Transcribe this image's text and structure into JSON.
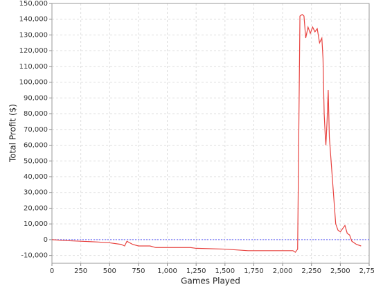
{
  "chart_data": {
    "type": "line",
    "x_label": "Games Played",
    "y_label": "Total Profit ($)",
    "x": [
      0,
      100,
      250,
      400,
      500,
      600,
      630,
      650,
      700,
      750,
      850,
      900,
      1000,
      1200,
      1250,
      1500,
      1700,
      2000,
      2090,
      2110,
      2130,
      2150,
      2170,
      2185,
      2200,
      2220,
      2240,
      2260,
      2280,
      2300,
      2320,
      2340,
      2350,
      2360,
      2370,
      2375,
      2385,
      2395,
      2405,
      2420,
      2430,
      2440,
      2450,
      2460,
      2480,
      2500,
      2520,
      2540,
      2560,
      2580,
      2600,
      2620,
      2640,
      2680
    ],
    "values": [
      0,
      -500,
      -1000,
      -1500,
      -2000,
      -3000,
      -4000,
      -1000,
      -3000,
      -4000,
      -4000,
      -5000,
      -5000,
      -5000,
      -5500,
      -6000,
      -7000,
      -7000,
      -7000,
      -8000,
      -6000,
      142000,
      143000,
      142000,
      128000,
      135000,
      131000,
      135000,
      132000,
      134000,
      125000,
      128000,
      115000,
      80000,
      65000,
      60000,
      75000,
      95000,
      65000,
      50000,
      40000,
      30000,
      20000,
      10000,
      6000,
      5000,
      7000,
      9000,
      4000,
      3000,
      -1000,
      -2000,
      -3000,
      -4000
    ],
    "color": "#e8423f",
    "xlim": [
      0,
      2750
    ],
    "xticks": [
      0,
      250,
      500,
      750,
      {
        "value": 1000,
        "label": "1,000"
      },
      {
        "value": 1250,
        "label": "1,250"
      },
      {
        "value": 1500,
        "label": "1,500"
      },
      {
        "value": 1750,
        "label": "1,750"
      },
      {
        "value": 2000,
        "label": "2,000"
      },
      {
        "value": 2250,
        "label": "2,250"
      },
      {
        "value": 2500,
        "label": "2,500"
      },
      {
        "value": 2750,
        "label": "2,750"
      }
    ],
    "ylim": [
      -15000,
      150000
    ],
    "yticks": [
      {
        "value": -10000,
        "label": "-10,000"
      },
      0,
      {
        "value": 10000,
        "label": "10,000"
      },
      {
        "value": 20000,
        "label": "20,000"
      },
      {
        "value": 30000,
        "label": "30,000"
      },
      {
        "value": 40000,
        "label": "40,000"
      },
      {
        "value": 50000,
        "label": "50,000"
      },
      {
        "value": 60000,
        "label": "60,000"
      },
      {
        "value": 70000,
        "label": "70,000"
      },
      {
        "value": 80000,
        "label": "80,000"
      },
      {
        "value": 90000,
        "label": "90,000"
      },
      {
        "value": 100000,
        "label": "100,000"
      },
      {
        "value": 110000,
        "label": "110,000"
      },
      {
        "value": 120000,
        "label": "120,000"
      },
      {
        "value": 130000,
        "label": "130,000"
      },
      {
        "value": 140000,
        "label": "140,000"
      },
      {
        "value": 150000,
        "label": "150,000"
      }
    ],
    "grid": true,
    "reference_line": {
      "value": 0,
      "color": "#5a5aff"
    }
  }
}
